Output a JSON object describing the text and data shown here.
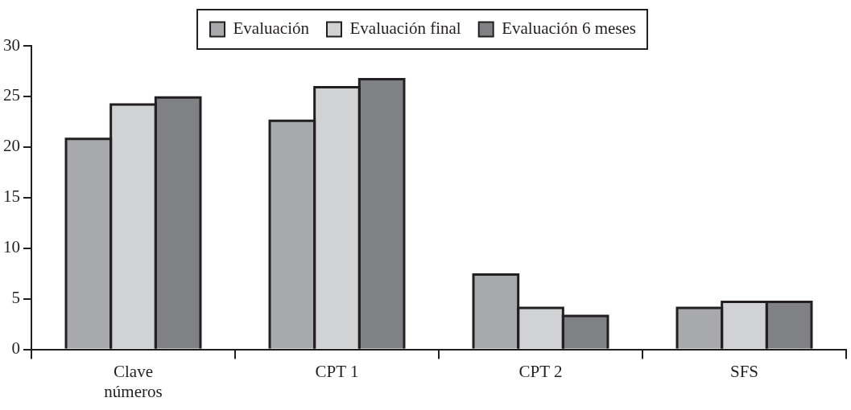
{
  "chart_data": {
    "type": "bar",
    "categories": [
      "Clave números",
      "CPT 1",
      "CPT 2",
      "SFS"
    ],
    "series": [
      {
        "name": "Evaluación",
        "color": "#a8a9ad",
        "values": [
          20.8,
          22.6,
          7.4,
          4.1
        ]
      },
      {
        "name": "Evaluación final",
        "color": "#d1d2d4",
        "values": [
          24.2,
          25.9,
          4.1,
          4.7
        ]
      },
      {
        "name": "Evaluación 6 meses",
        "color": "#808184",
        "values": [
          24.9,
          26.7,
          3.3,
          4.7
        ]
      }
    ],
    "ylim": [
      0,
      30
    ],
    "yticks": [
      0,
      5,
      10,
      15,
      20,
      25,
      30
    ],
    "grid": false,
    "legend": "top"
  }
}
